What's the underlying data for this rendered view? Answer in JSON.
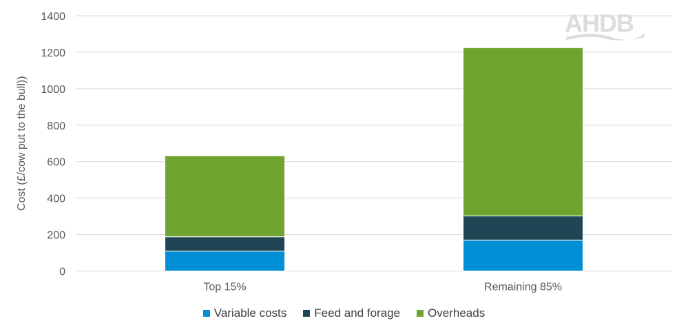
{
  "chart_data": {
    "type": "bar",
    "stacked": true,
    "categories": [
      "Top 15%",
      "Remaining 85%"
    ],
    "series": [
      {
        "name": "Variable costs",
        "values": [
          109,
          169
        ],
        "color": "#008FD5"
      },
      {
        "name": "Feed and forage",
        "values": [
          79,
          133
        ],
        "color": "#204555"
      },
      {
        "name": "Overheads",
        "values": [
          444,
          923
        ],
        "color": "#6EA42F"
      }
    ],
    "ylabel": "Cost (£/cow put to the bull))",
    "xlabel": "",
    "ylim": [
      0,
      1400
    ],
    "yticks": [
      0,
      200,
      400,
      600,
      800,
      1000,
      1200,
      1400
    ],
    "grid": true,
    "legend": "bottom"
  },
  "logo": {
    "text": "AHDB"
  }
}
